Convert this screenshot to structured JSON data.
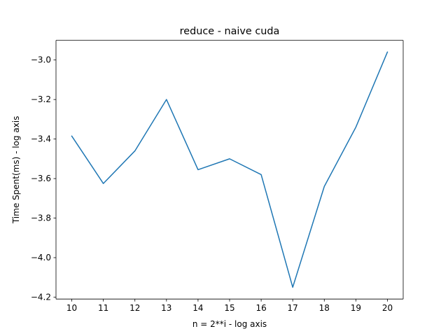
{
  "chart_data": {
    "type": "line",
    "title": "reduce - naive cuda",
    "xlabel": "n = 2**i - log axis",
    "ylabel": "Time Spent(ms) - log axis",
    "x": [
      10,
      11,
      12,
      13,
      14,
      15,
      16,
      17,
      18,
      19,
      20
    ],
    "series": [
      {
        "values": [
          -3.385,
          -3.625,
          -3.46,
          -3.2,
          -3.555,
          -3.5,
          -3.58,
          -4.15,
          -3.64,
          -3.34,
          -2.96
        ],
        "color": "#1f77b4"
      }
    ],
    "xticks": [
      "10",
      "11",
      "12",
      "13",
      "14",
      "15",
      "16",
      "17",
      "18",
      "19",
      "20"
    ],
    "yticks": [
      -3.0,
      -3.2,
      -3.4,
      -3.6,
      -3.8,
      -4.0,
      -4.2
    ],
    "ytick_labels": [
      "−3.0",
      "−3.2",
      "−3.4",
      "−3.6",
      "−3.8",
      "−4.0",
      "−4.2"
    ],
    "xlim": [
      9.5,
      20.5
    ],
    "ylim": [
      -4.2095,
      -2.9005
    ],
    "grid": false,
    "legend": "none"
  }
}
